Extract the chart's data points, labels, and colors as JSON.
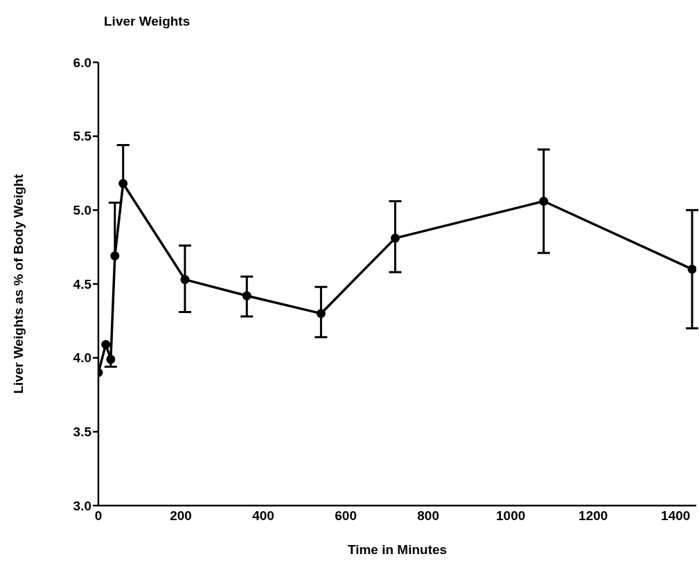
{
  "chart_data": {
    "type": "line",
    "title": "Liver Weights",
    "xlabel": "Time in Minutes",
    "ylabel": "Liver Weights as % of Body Weight",
    "x": [
      0,
      18,
      30,
      40,
      60,
      210,
      360,
      540,
      720,
      1080,
      1440
    ],
    "series": [
      {
        "color": "#000000",
        "values": [
          3.9,
          4.09,
          3.99,
          4.69,
          5.18,
          4.53,
          4.42,
          4.3,
          4.81,
          5.06,
          4.6
        ],
        "errors": [
          null,
          null,
          [
            3.94,
            3.99
          ],
          [
            4.69,
            5.05
          ],
          [
            5.18,
            5.44
          ],
          [
            4.31,
            4.76
          ],
          [
            4.28,
            4.55
          ],
          [
            4.14,
            4.48
          ],
          [
            4.58,
            5.06
          ],
          0.35,
          0.4
        ]
      }
    ],
    "xlim": [
      0,
      1450
    ],
    "xticks": [
      0,
      200,
      400,
      600,
      800,
      1000,
      1200,
      1400
    ],
    "ylim": [
      3,
      6
    ],
    "yticks": [
      {
        "value": 3,
        "label": "3.0"
      },
      3.5,
      {
        "value": 4,
        "label": "4.0"
      },
      4.5,
      {
        "value": 5,
        "label": "5.0"
      },
      5.5,
      {
        "value": 6,
        "label": "6.0"
      }
    ],
    "grid": false,
    "legend": false,
    "marker": "circle",
    "line_style": "solid"
  }
}
